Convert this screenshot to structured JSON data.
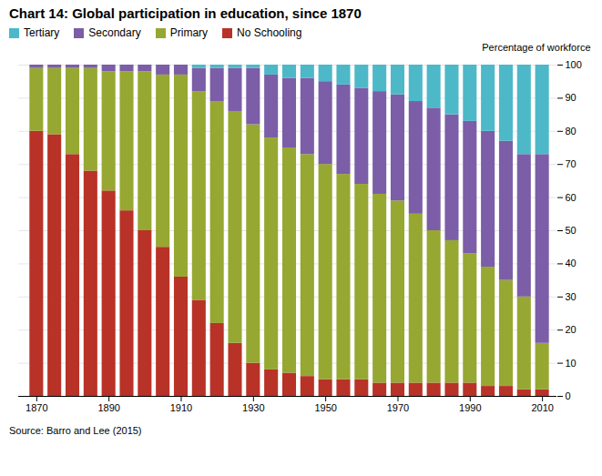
{
  "chart_data": {
    "type": "bar",
    "stacked": true,
    "title": "Chart 14: Global participation in education, since 1870",
    "ylabel": "Percentage of workforce",
    "caption": "Source: Barro and Lee (2015)",
    "x": [
      1870,
      1875,
      1880,
      1885,
      1890,
      1895,
      1900,
      1905,
      1910,
      1915,
      1920,
      1925,
      1930,
      1935,
      1940,
      1945,
      1950,
      1955,
      1960,
      1965,
      1970,
      1975,
      1980,
      1985,
      1990,
      1995,
      2000,
      2005,
      2010
    ],
    "series": [
      {
        "name": "No Schooling",
        "color": "#b83228",
        "values": [
          80,
          79,
          73,
          68,
          62,
          56,
          50,
          45,
          36,
          29,
          22,
          16,
          10,
          8,
          7,
          6,
          5,
          5,
          5,
          4,
          4,
          4,
          4,
          4,
          4,
          3,
          3,
          2,
          2
        ]
      },
      {
        "name": "Primary",
        "color": "#96a832",
        "values": [
          19,
          20,
          26,
          31,
          36,
          42,
          48,
          52,
          61,
          63,
          67,
          70,
          72,
          70,
          68,
          67,
          65,
          62,
          59,
          57,
          55,
          51,
          46,
          43,
          39,
          36,
          32,
          28,
          14
        ]
      },
      {
        "name": "Secondary",
        "color": "#7b5ea7",
        "values": [
          1,
          1,
          1,
          1,
          2,
          2,
          2,
          3,
          3,
          7,
          10,
          13,
          17,
          19,
          21,
          23,
          25,
          27,
          29,
          31,
          32,
          34,
          37,
          38,
          40,
          41,
          42,
          43,
          57
        ]
      },
      {
        "name": "Tertiary",
        "color": "#4db8c8",
        "values": [
          0,
          0,
          0,
          0,
          0,
          0,
          0,
          0,
          0,
          1,
          1,
          1,
          1,
          3,
          4,
          4,
          5,
          6,
          7,
          8,
          9,
          11,
          13,
          15,
          17,
          20,
          23,
          27,
          27
        ]
      }
    ],
    "xlim": [
      1865,
      2014
    ],
    "xticks": [
      1870,
      1890,
      1910,
      1930,
      1950,
      1970,
      1990,
      2010
    ],
    "ylim": [
      0,
      100
    ],
    "yticks": [
      0,
      10,
      20,
      30,
      40,
      50,
      60,
      70,
      80,
      90,
      100
    ],
    "grid": true,
    "legend": "top-left"
  }
}
